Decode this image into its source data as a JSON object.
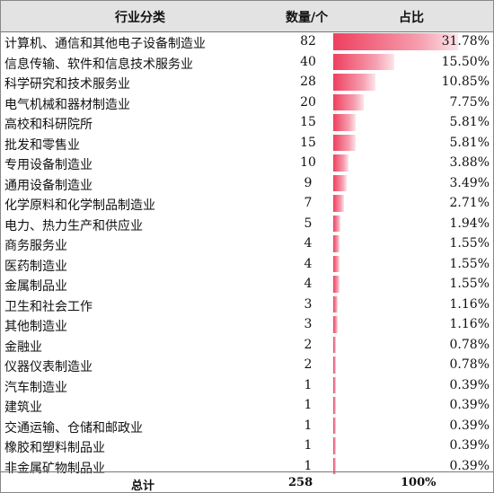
{
  "header": {
    "category": "行业分类",
    "count": "数量/个",
    "share": "占比"
  },
  "rows": [
    {
      "category": "计算机、通信和其他电子设备制造业",
      "count": "82",
      "share": 31.78,
      "share_label": "31.78%"
    },
    {
      "category": "信息传输、软件和信息技术服务业",
      "count": "40",
      "share": 15.5,
      "share_label": "15.50%"
    },
    {
      "category": "科学研究和技术服务业",
      "count": "28",
      "share": 10.85,
      "share_label": "10.85%"
    },
    {
      "category": "电气机械和器材制造业",
      "count": "20",
      "share": 7.75,
      "share_label": "7.75%"
    },
    {
      "category": "高校和科研院所",
      "count": "15",
      "share": 5.81,
      "share_label": "5.81%"
    },
    {
      "category": "批发和零售业",
      "count": "15",
      "share": 5.81,
      "share_label": "5.81%"
    },
    {
      "category": "专用设备制造业",
      "count": "10",
      "share": 3.88,
      "share_label": "3.88%"
    },
    {
      "category": "通用设备制造业",
      "count": "9",
      "share": 3.49,
      "share_label": "3.49%"
    },
    {
      "category": "化学原料和化学制品制造业",
      "count": "7",
      "share": 2.71,
      "share_label": "2.71%"
    },
    {
      "category": "电力、热力生产和供应业",
      "count": "5",
      "share": 1.94,
      "share_label": "1.94%"
    },
    {
      "category": "商务服务业",
      "count": "4",
      "share": 1.55,
      "share_label": "1.55%"
    },
    {
      "category": "医药制造业",
      "count": "4",
      "share": 1.55,
      "share_label": "1.55%"
    },
    {
      "category": "金属制品业",
      "count": "4",
      "share": 1.55,
      "share_label": "1.55%"
    },
    {
      "category": "卫生和社会工作",
      "count": "3",
      "share": 1.16,
      "share_label": "1.16%"
    },
    {
      "category": "其他制造业",
      "count": "3",
      "share": 1.16,
      "share_label": "1.16%"
    },
    {
      "category": "金融业",
      "count": "2",
      "share": 0.78,
      "share_label": "0.78%"
    },
    {
      "category": "仪器仪表制造业",
      "count": "2",
      "share": 0.78,
      "share_label": "0.78%"
    },
    {
      "category": "汽车制造业",
      "count": "1",
      "share": 0.39,
      "share_label": "0.39%"
    },
    {
      "category": "建筑业",
      "count": "1",
      "share": 0.39,
      "share_label": "0.39%"
    },
    {
      "category": "交通运输、仓储和邮政业",
      "count": "1",
      "share": 0.39,
      "share_label": "0.39%"
    },
    {
      "category": "橡胶和塑料制品业",
      "count": "1",
      "share": 0.39,
      "share_label": "0.39%"
    },
    {
      "category": "非金属矿物制品业",
      "count": "1",
      "share": 0.39,
      "share_label": "0.39%"
    }
  ],
  "footer": {
    "label": "总计",
    "count": "258",
    "share": "100%"
  },
  "colors": {
    "bar_start": "#ef3f5e",
    "bar_end": "#fde4ea",
    "header_bg": "#e3e3e3"
  }
}
